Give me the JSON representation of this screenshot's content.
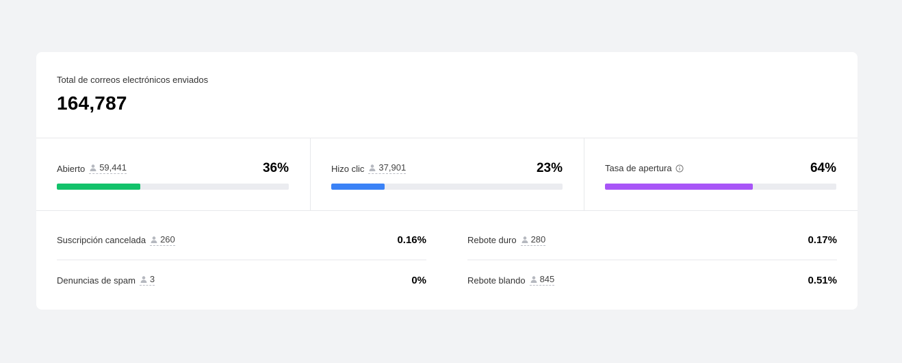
{
  "summary": {
    "label": "Total de correos electrónicos enviados",
    "value": "164,787"
  },
  "metrics": [
    {
      "label": "Abierto",
      "count": "59,441",
      "percent_label": "36%",
      "fill_percent": 36,
      "color": "#12c26a",
      "has_info": false
    },
    {
      "label": "Hizo clic",
      "count": "37,901",
      "percent_label": "23%",
      "fill_percent": 23,
      "color": "#3b82f6",
      "has_info": false
    },
    {
      "label": "Tasa de apertura",
      "count": "",
      "percent_label": "64%",
      "fill_percent": 64,
      "color": "#a855f7",
      "has_info": true
    }
  ],
  "stats": {
    "left": [
      {
        "label": "Suscripción cancelada",
        "count": "260",
        "percent": "0.16%"
      },
      {
        "label": "Denuncias de spam",
        "count": "3",
        "percent": "0%"
      }
    ],
    "right": [
      {
        "label": "Rebote duro",
        "count": "280",
        "percent": "0.17%"
      },
      {
        "label": "Rebote blando",
        "count": "845",
        "percent": "0.51%"
      }
    ]
  },
  "icons": {
    "person": "person-icon",
    "info": "info-icon"
  }
}
